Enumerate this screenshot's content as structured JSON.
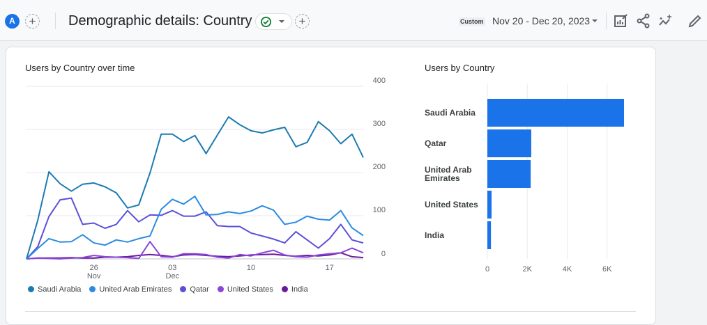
{
  "header": {
    "avatar_letter": "A",
    "title": "Demographic details: Country",
    "date_preset": "Custom",
    "date_range": "Nov 20 - Dec 20, 2023",
    "icons": [
      "add-comparison-icon",
      "status-check-icon",
      "chevron-down-icon",
      "add-icon",
      "customize-report-icon",
      "share-icon",
      "insights-icon",
      "edit-icon"
    ]
  },
  "colors": {
    "accent": "#1a73e8",
    "saudi": "#1b7bb1",
    "uae": "#2b8be2",
    "qatar": "#5b4fd8",
    "us": "#8a45d9",
    "india": "#6a1b9a"
  },
  "chart_data": [
    {
      "type": "line",
      "title": "Users by Country over time",
      "x": [
        "Nov 20",
        "Nov 21",
        "Nov 22",
        "Nov 23",
        "Nov 24",
        "Nov 25",
        "Nov 26",
        "Nov 27",
        "Nov 28",
        "Nov 29",
        "Nov 30",
        "Dec 01",
        "Dec 02",
        "Dec 03",
        "Dec 04",
        "Dec 05",
        "Dec 06",
        "Dec 07",
        "Dec 08",
        "Dec 09",
        "Dec 10",
        "Dec 11",
        "Dec 12",
        "Dec 13",
        "Dec 14",
        "Dec 15",
        "Dec 16",
        "Dec 17",
        "Dec 18",
        "Dec 19",
        "Dec 20"
      ],
      "x_tick_labels": [
        {
          "day": "26",
          "month": "Nov",
          "index": 6
        },
        {
          "day": "03",
          "month": "Dec",
          "index": 13
        },
        {
          "day": "10",
          "month": "",
          "index": 20
        },
        {
          "day": "17",
          "month": "",
          "index": 27
        }
      ],
      "ylim": [
        0,
        400
      ],
      "y_ticks": [
        "400",
        "300",
        "200",
        "100",
        "0"
      ],
      "y_tick_values": [
        400,
        300,
        200,
        100,
        0
      ],
      "grid": true,
      "legend_position": "bottom",
      "series": [
        {
          "name": "Saudi Arabia",
          "color": "#1b7bb1",
          "values": [
            0,
            89,
            202,
            174,
            157,
            173,
            176,
            167,
            153,
            118,
            125,
            199,
            289,
            289,
            272,
            286,
            244,
            287,
            329,
            311,
            297,
            292,
            299,
            305,
            260,
            270,
            318,
            297,
            267,
            289,
            235
          ]
        },
        {
          "name": "United Arab Emirates",
          "color": "#2b8be2",
          "values": [
            0,
            24,
            47,
            39,
            40,
            56,
            37,
            32,
            44,
            39,
            47,
            53,
            115,
            138,
            127,
            145,
            102,
            103,
            109,
            105,
            111,
            123,
            113,
            80,
            85,
            99,
            92,
            90,
            112,
            72,
            54
          ]
        },
        {
          "name": "Qatar",
          "color": "#5b4fd8",
          "values": [
            0,
            28,
            98,
            137,
            141,
            80,
            83,
            71,
            80,
            112,
            86,
            102,
            101,
            112,
            99,
            99,
            109,
            77,
            75,
            75,
            60,
            53,
            46,
            37,
            63,
            44,
            25,
            47,
            80,
            44,
            37
          ]
        },
        {
          "name": "United States",
          "color": "#8a45d9",
          "values": [
            0,
            2,
            1,
            0,
            2,
            3,
            8,
            5,
            4,
            3,
            1,
            40,
            5,
            4,
            12,
            12,
            10,
            4,
            2,
            10,
            7,
            14,
            20,
            9,
            5,
            4,
            9,
            12,
            14,
            25,
            14
          ]
        },
        {
          "name": "India",
          "color": "#6a1b9a",
          "values": [
            0,
            2,
            2,
            2,
            3,
            2,
            2,
            4,
            4,
            5,
            8,
            10,
            8,
            5,
            9,
            10,
            8,
            6,
            5,
            7,
            9,
            10,
            11,
            8,
            6,
            8,
            7,
            9,
            14,
            5,
            3
          ]
        }
      ]
    },
    {
      "type": "bar",
      "orientation": "horizontal",
      "title": "Users by Country",
      "categories": [
        "Saudi Arabia",
        "Qatar",
        "United Arab Emirates",
        "United States",
        "India"
      ],
      "category_lines": [
        [
          "Saudi Arabia"
        ],
        [
          "Qatar"
        ],
        [
          "United Arab",
          "Emirates"
        ],
        [
          "United States"
        ],
        [
          "India"
        ]
      ],
      "values": [
        6850,
        2200,
        2170,
        210,
        180
      ],
      "xlim": [
        0,
        7000
      ],
      "x_ticks": [
        "0",
        "2K",
        "4K",
        "6K"
      ],
      "x_tick_values": [
        0,
        2000,
        4000,
        6000
      ],
      "grid": true,
      "color": "#1a73e8"
    }
  ]
}
